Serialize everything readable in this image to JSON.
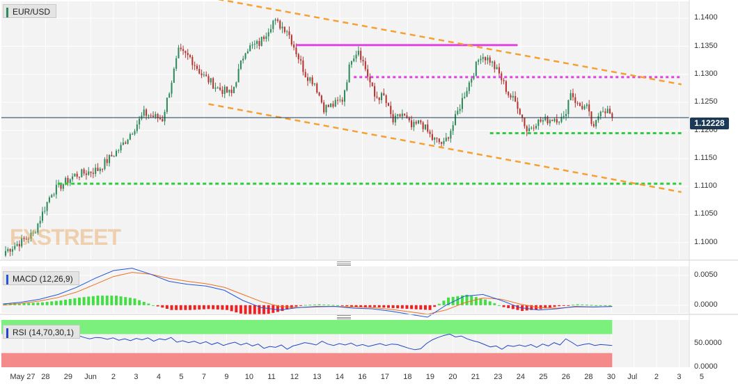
{
  "instrument": "EUR/USD",
  "watermark": "FXSTREET",
  "last_price": "1.12228",
  "macd_label": "MACD (12,26,9)",
  "rsi_label": "RSI (14,70,30,1)",
  "colors": {
    "up_candle": "#2d8a5a",
    "down_candle": "#b5332f",
    "channel_line": "#f5a030",
    "resistance": "#e040e0",
    "support": "#2ecc40",
    "macd_line": "#2255dd",
    "signal_line": "#f07020",
    "hist_pos": "#44dd44",
    "hist_neg": "#ee2222",
    "rsi_line": "#2244cc",
    "rsi_overbought": "#7cf07c",
    "rsi_oversold": "#f58a8a",
    "price_tag": "#1b3a57"
  },
  "chart_data": [
    {
      "type": "candlestick",
      "title": "EUR/USD",
      "y_ticks": [
        "1.1400",
        "1.1350",
        "1.1300",
        "1.1250",
        "1.1200",
        "1.1150",
        "1.1100",
        "1.1050",
        "1.1000"
      ],
      "x_ticks": [
        "May 27",
        "28",
        "29",
        "Jun",
        "2",
        "3",
        "4",
        "5",
        "7",
        "9",
        "10",
        "11",
        "12",
        "13",
        "14",
        "16",
        "17",
        "18",
        "19",
        "20",
        "21",
        "23",
        "24",
        "25",
        "26",
        "28",
        "30",
        "Jul",
        "2",
        "3",
        "5"
      ],
      "ylim": [
        1.097,
        1.143
      ],
      "current_price": 1.12228,
      "key_closes": [
        {
          "bar": 0,
          "close": 1.0985
        },
        {
          "bar": 12,
          "close": 1.1015
        },
        {
          "bar": 20,
          "close": 1.109
        },
        {
          "bar": 30,
          "close": 1.112
        },
        {
          "bar": 40,
          "close": 1.113
        },
        {
          "bar": 50,
          "close": 1.117
        },
        {
          "bar": 60,
          "close": 1.123
        },
        {
          "bar": 68,
          "close": 1.122
        },
        {
          "bar": 75,
          "close": 1.134
        },
        {
          "bar": 80,
          "close": 1.133
        },
        {
          "bar": 85,
          "close": 1.13
        },
        {
          "bar": 92,
          "close": 1.1275
        },
        {
          "bar": 98,
          "close": 1.1265
        },
        {
          "bar": 104,
          "close": 1.1345
        },
        {
          "bar": 110,
          "close": 1.1355
        },
        {
          "bar": 116,
          "close": 1.1395
        },
        {
          "bar": 122,
          "close": 1.138
        },
        {
          "bar": 126,
          "close": 1.134
        },
        {
          "bar": 130,
          "close": 1.13
        },
        {
          "bar": 134,
          "close": 1.1285
        },
        {
          "bar": 138,
          "close": 1.124
        },
        {
          "bar": 142,
          "close": 1.1245
        },
        {
          "bar": 146,
          "close": 1.1255
        },
        {
          "bar": 150,
          "close": 1.133
        },
        {
          "bar": 153,
          "close": 1.1345
        },
        {
          "bar": 156,
          "close": 1.131
        },
        {
          "bar": 160,
          "close": 1.126
        },
        {
          "bar": 164,
          "close": 1.126
        },
        {
          "bar": 168,
          "close": 1.1215
        },
        {
          "bar": 172,
          "close": 1.123
        },
        {
          "bar": 176,
          "close": 1.1205
        },
        {
          "bar": 180,
          "close": 1.1215
        },
        {
          "bar": 185,
          "close": 1.1185
        },
        {
          "bar": 190,
          "close": 1.1175
        },
        {
          "bar": 194,
          "close": 1.121
        },
        {
          "bar": 198,
          "close": 1.1255
        },
        {
          "bar": 202,
          "close": 1.1295
        },
        {
          "bar": 206,
          "close": 1.1335
        },
        {
          "bar": 210,
          "close": 1.1325
        },
        {
          "bar": 214,
          "close": 1.13
        },
        {
          "bar": 218,
          "close": 1.1265
        },
        {
          "bar": 222,
          "close": 1.1245
        },
        {
          "bar": 226,
          "close": 1.12
        },
        {
          "bar": 230,
          "close": 1.1215
        },
        {
          "bar": 234,
          "close": 1.1218
        },
        {
          "bar": 238,
          "close": 1.1222
        },
        {
          "bar": 242,
          "close": 1.122
        },
        {
          "bar": 245,
          "close": 1.127
        },
        {
          "bar": 248,
          "close": 1.1245
        },
        {
          "bar": 252,
          "close": 1.124
        },
        {
          "bar": 255,
          "close": 1.12
        },
        {
          "bar": 258,
          "close": 1.124
        },
        {
          "bar": 261,
          "close": 1.1235
        },
        {
          "bar": 263,
          "close": 1.12228
        }
      ],
      "trendlines": [
        {
          "kind": "channel-upper",
          "from": {
            "bar": 88,
            "price": 1.1437
          },
          "to": {
            "bar": 293,
            "price": 1.1282
          }
        },
        {
          "kind": "channel-lower",
          "from": {
            "bar": 88,
            "price": 1.1247
          },
          "to": {
            "bar": 293,
            "price": 1.109
          }
        }
      ],
      "horizontal_levels": [
        {
          "kind": "resistance",
          "price": 1.1352,
          "from_bar": 126,
          "to_bar": 222
        },
        {
          "kind": "resistance",
          "price": 1.1295,
          "from_bar": 151,
          "to_bar": 293
        },
        {
          "kind": "support",
          "price": 1.1195,
          "from_bar": 210,
          "to_bar": 293
        },
        {
          "kind": "support",
          "price": 1.1105,
          "from_bar": 23,
          "to_bar": 293
        }
      ]
    },
    {
      "type": "line",
      "title": "MACD (12,26,9)",
      "y_ticks": [
        "0.0050",
        "0.0000"
      ],
      "ylim": [
        -0.0013,
        0.0065
      ],
      "macd_line": [
        0.0002,
        0.0005,
        0.001,
        0.0018,
        0.003,
        0.0045,
        0.0058,
        0.0062,
        0.0052,
        0.004,
        0.0035,
        0.0032,
        0.0025,
        0.0008,
        -0.0004,
        -0.0008,
        -0.0004,
        -0.0002,
        -0.0002,
        -0.0005,
        -0.0006,
        -0.001,
        -0.0015,
        -0.002,
        0.0,
        0.0015,
        0.0018,
        0.0008,
        -0.0004,
        -0.0008,
        -0.0006,
        -0.0002,
        -0.0003,
        -0.0002
      ],
      "signal_line": [
        0.0,
        0.0003,
        0.0007,
        0.0013,
        0.0022,
        0.0035,
        0.0048,
        0.0055,
        0.0052,
        0.0045,
        0.004,
        0.0036,
        0.003,
        0.0018,
        0.0006,
        -0.0002,
        -0.0004,
        -0.0003,
        -0.0002,
        -0.0003,
        -0.0004,
        -0.0007,
        -0.0011,
        -0.0015,
        -0.0008,
        0.0004,
        0.0012,
        0.001,
        0.0002,
        -0.0004,
        -0.0005,
        -0.0003,
        -0.0003,
        -0.0002
      ]
    },
    {
      "type": "line",
      "title": "RSI (14,70,30,1)",
      "y_ticks": [
        "50.0000",
        "0.0000"
      ],
      "ylim": [
        0,
        100
      ],
      "overbought": 70,
      "oversold": 30,
      "rsi": [
        72,
        70,
        66,
        70,
        66,
        68,
        64,
        67,
        66,
        69,
        64,
        66,
        62,
        67,
        63,
        60,
        63,
        62,
        59,
        62,
        57,
        60,
        56,
        61,
        58,
        62,
        55,
        60,
        58,
        63,
        53,
        56,
        52,
        55,
        50,
        54,
        48,
        52,
        46,
        50,
        53,
        47,
        51,
        45,
        49,
        40,
        44,
        42,
        47,
        38,
        45,
        48,
        52,
        50,
        47,
        55,
        49,
        46,
        50,
        47,
        51,
        45,
        48,
        44,
        47,
        50,
        46,
        49,
        48,
        44,
        40,
        37,
        39,
        50,
        58,
        63,
        67,
        70,
        64,
        66,
        60,
        56,
        53,
        48,
        43,
        45,
        38,
        46,
        44,
        47,
        44,
        48,
        42,
        49,
        45,
        52,
        47,
        60,
        53,
        45,
        48,
        50,
        46,
        48,
        47,
        46
      ]
    }
  ]
}
